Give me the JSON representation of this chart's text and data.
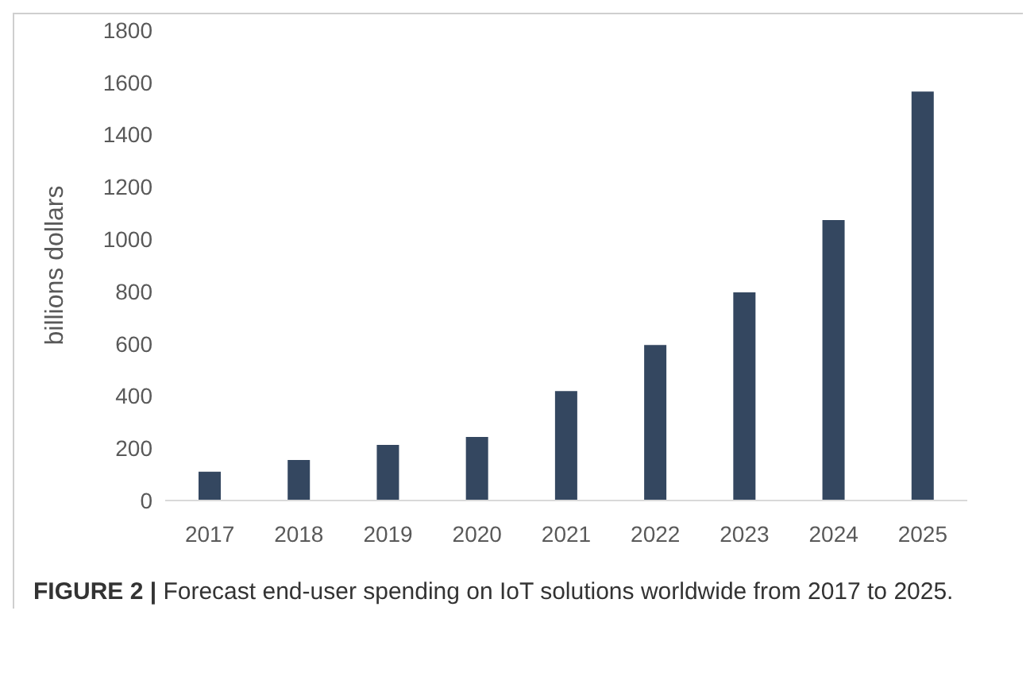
{
  "chart_data": {
    "type": "bar",
    "ylabel": "billions dollars",
    "categories": [
      "2017",
      "2018",
      "2019",
      "2020",
      "2021",
      "2022",
      "2023",
      "2024",
      "2025"
    ],
    "values": [
      110,
      155,
      213,
      243,
      419,
      595,
      797,
      1073,
      1565
    ],
    "color": "#344760",
    "ylim": [
      0,
      1800
    ],
    "yticks": [
      0,
      200,
      400,
      600,
      800,
      1000,
      1200,
      1400,
      1600,
      1800
    ],
    "annotations": [
      "FIGURE 2 | Forecast end-user spending on IoT solutions worldwide from 2017 to 2025."
    ]
  }
}
